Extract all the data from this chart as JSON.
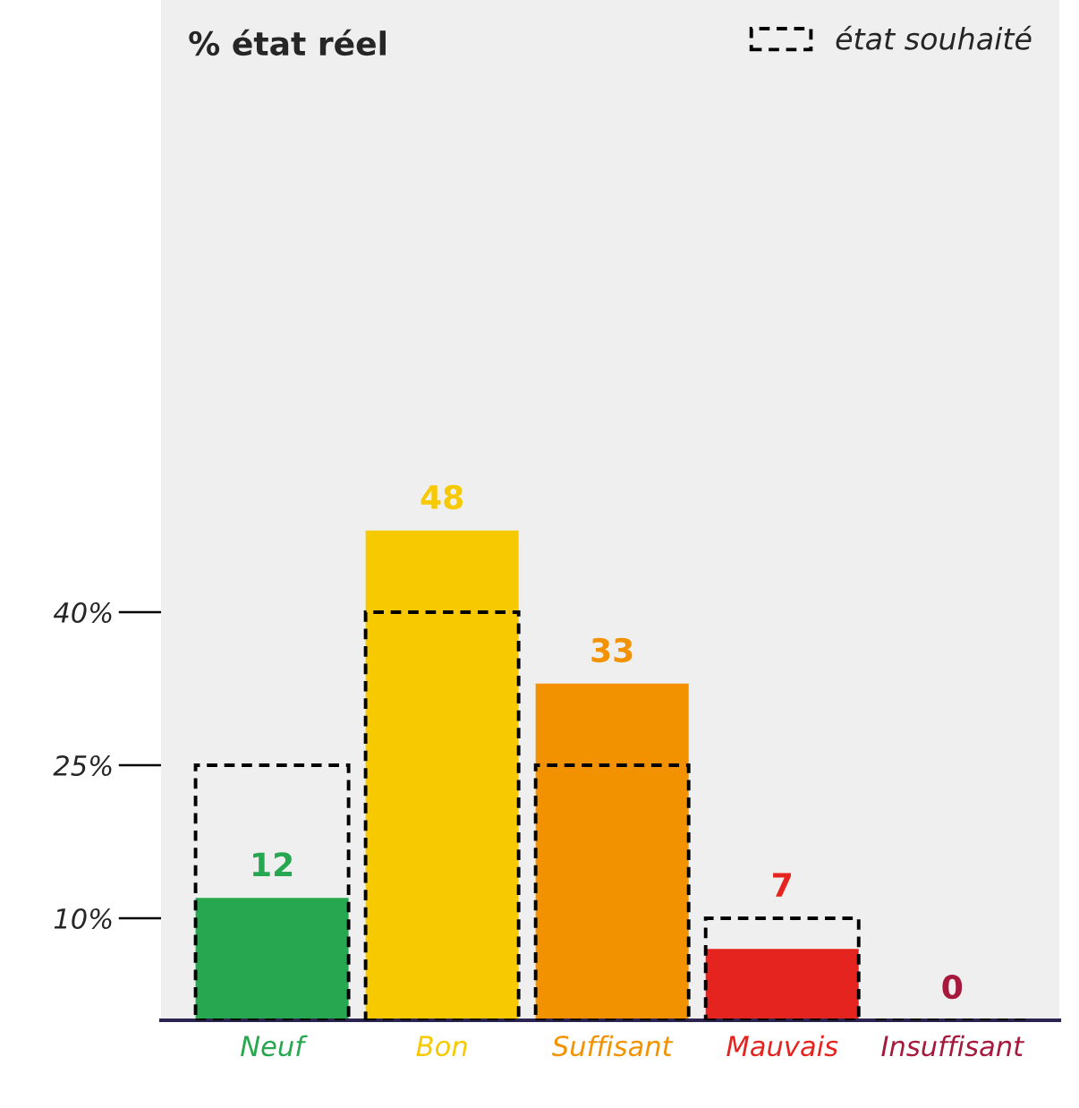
{
  "chart_data": {
    "type": "bar",
    "ylabel": "% état réel",
    "categories": [
      "Neuf",
      "Bon",
      "Suffisant",
      "Mauvais",
      "Insuffisant"
    ],
    "series": [
      {
        "colors": [
          "#27a74f",
          "#f7c900",
          "#f39200",
          "#e52420",
          "#a6193c"
        ],
        "values": [
          12,
          48,
          33,
          7,
          0
        ],
        "value_labels": [
          "12",
          "48",
          "33",
          "7",
          "0"
        ]
      },
      {
        "name": "état souhaité",
        "color": "#000000",
        "line_style": "dashed",
        "values": [
          25,
          40,
          25,
          10,
          0
        ]
      }
    ],
    "ylim": [
      0,
      100
    ],
    "yticks": [
      {
        "value": 10,
        "label": "10%"
      },
      {
        "value": 25,
        "label": "25%"
      },
      {
        "value": 40,
        "label": "40%"
      }
    ],
    "grid": false,
    "legend": "top right"
  }
}
